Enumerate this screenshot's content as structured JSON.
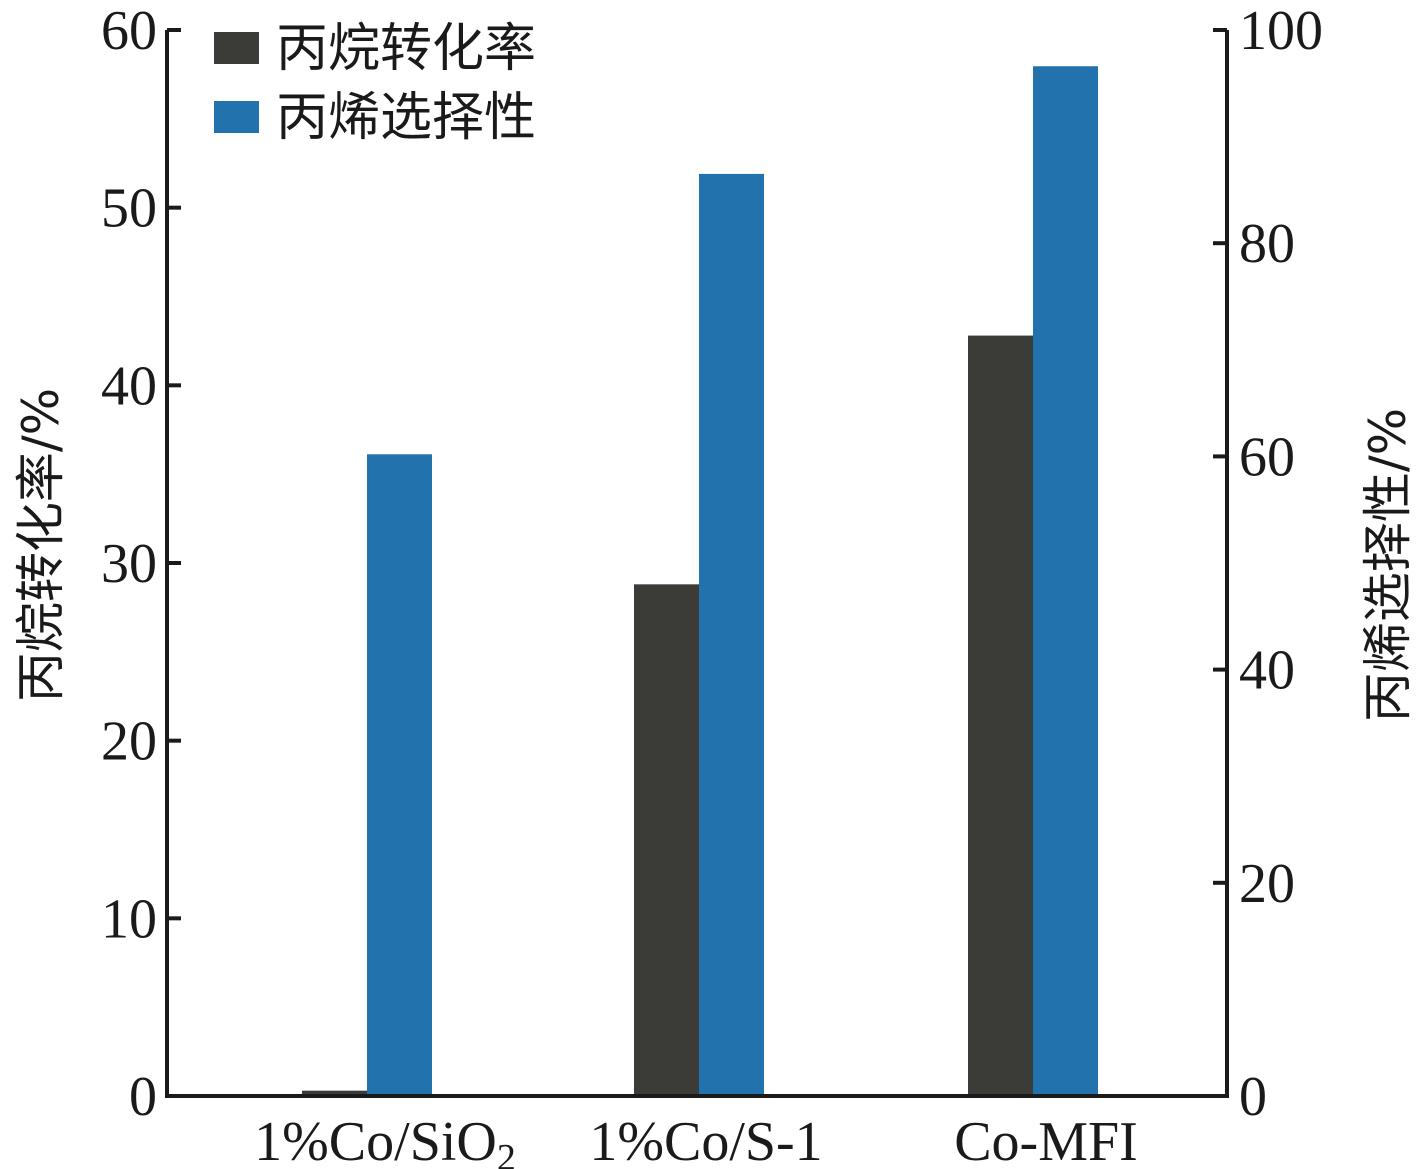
{
  "chart_data": {
    "type": "bar",
    "categories": [
      "1%Co/SiO",
      "1%Co/S-1",
      "Co-MFI"
    ],
    "category_subscripts": [
      "2",
      "",
      ""
    ],
    "series": [
      {
        "name": "丙烷转化率",
        "axis": "left",
        "color": "#3b3b37",
        "values": [
          0.3,
          28.8,
          42.8
        ]
      },
      {
        "name": "丙烯选择性",
        "axis": "right",
        "color": "#2272ae",
        "values": [
          60.2,
          86.5,
          96.6
        ]
      }
    ],
    "y_left": {
      "label": "丙烷转化率/%",
      "range": [
        0,
        60
      ],
      "ticks": [
        0,
        10,
        20,
        30,
        40,
        50,
        60
      ]
    },
    "y_right": {
      "label": "丙烯选择性/%",
      "range": [
        0,
        100
      ],
      "ticks": [
        0,
        20,
        40,
        60,
        80,
        100
      ]
    },
    "legend": {
      "position": "top-left"
    },
    "grid": false
  }
}
